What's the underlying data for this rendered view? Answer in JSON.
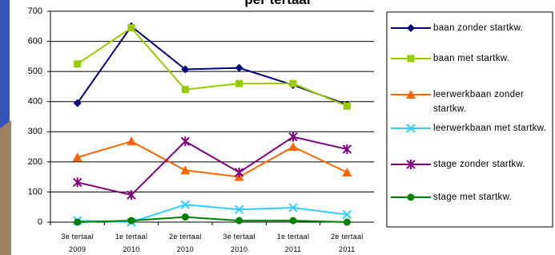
{
  "chart_data": {
    "type": "line",
    "title": "per tertaal",
    "categories": [
      "3e tertaal 2009",
      "1e tertaal 2010",
      "2e tertaal 2010",
      "3e tertaal 2010",
      "1e tertaal 2011",
      "2e tertaal 2011"
    ],
    "ylim": [
      0,
      700
    ],
    "yticks": [
      0,
      100,
      200,
      300,
      400,
      500,
      600,
      700
    ],
    "grid": true,
    "series": [
      {
        "name": "baan zonder startkw.",
        "color": "#000080",
        "marker": "diamond",
        "values": [
          395,
          650,
          507,
          512,
          455,
          390
        ]
      },
      {
        "name": "baan met startkw.",
        "color": "#99cc00",
        "marker": "square",
        "values": [
          525,
          645,
          440,
          460,
          460,
          385
        ]
      },
      {
        "name": "leerwerkbaan zonder startkw.",
        "color": "#ff6600",
        "marker": "triangle",
        "values": [
          215,
          268,
          172,
          150,
          250,
          165
        ]
      },
      {
        "name": "leerwerkbaan met startkw.",
        "color": "#33ccff",
        "marker": "x",
        "values": [
          5,
          0,
          58,
          42,
          48,
          25
        ]
      },
      {
        "name": "stage zonder startkw.",
        "color": "#800080",
        "marker": "star",
        "values": [
          132,
          90,
          268,
          165,
          283,
          242
        ]
      },
      {
        "name": "stage met startkw.",
        "color": "#008000",
        "marker": "circle",
        "values": [
          0,
          5,
          17,
          5,
          5,
          0
        ]
      }
    ]
  }
}
